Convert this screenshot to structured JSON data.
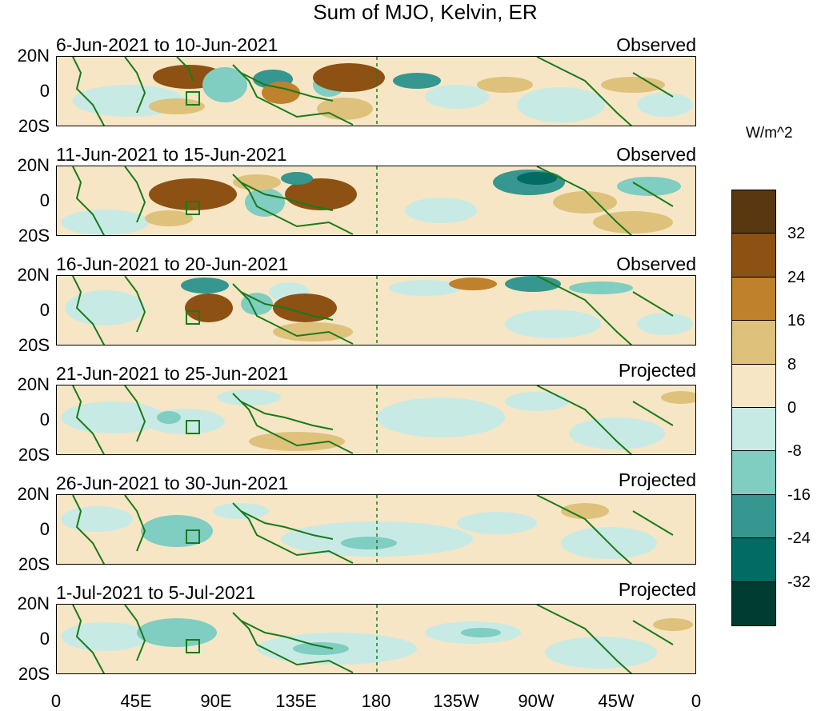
{
  "title": "Sum of MJO, Kelvin, ER",
  "colorbar": {
    "units": "W/m^2",
    "levels": [
      "32",
      "24",
      "16",
      "8",
      "0",
      "-8",
      "-16",
      "-24",
      "-32"
    ],
    "colors": [
      "#593711",
      "#8c5113",
      "#bf812c",
      "#dec27c",
      "#f6e6c5",
      "#c8eae5",
      "#80cdc1",
      "#35978f",
      "#026b62",
      "#003c30"
    ]
  },
  "lat_labels": [
    "20N",
    "0",
    "20S"
  ],
  "lon_labels": [
    "0",
    "45E",
    "90E",
    "135E",
    "180",
    "135W",
    "90W",
    "45W",
    "0"
  ],
  "panels": [
    {
      "period": "6-Jun-2021 to 10-Jun-2021",
      "status": "Observed"
    },
    {
      "period": "11-Jun-2021 to 15-Jun-2021",
      "status": "Observed"
    },
    {
      "period": "16-Jun-2021 to 20-Jun-2021",
      "status": "Observed"
    },
    {
      "period": "21-Jun-2021 to 25-Jun-2021",
      "status": "Projected"
    },
    {
      "period": "26-Jun-2021 to 30-Jun-2021",
      "status": "Projected"
    },
    {
      "period": "1-Jul-2021 to 5-Jul-2021",
      "status": "Projected"
    }
  ]
}
